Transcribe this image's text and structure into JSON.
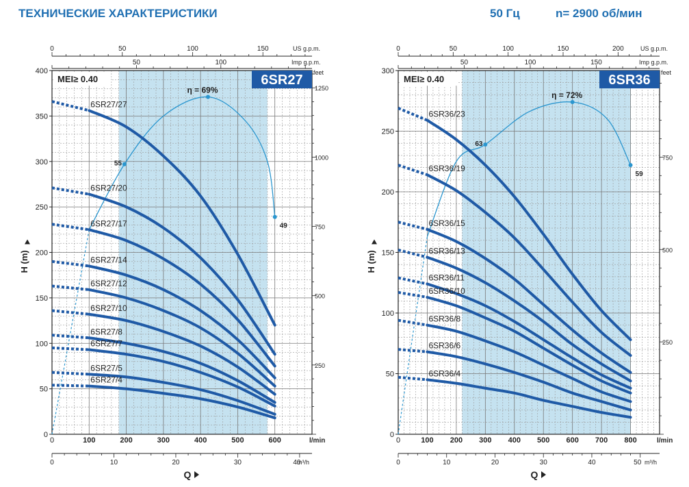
{
  "header": {
    "title": "ТЕХНИЧЕСКИЕ ХАРАКТЕРИСТИКИ",
    "frequency": "50 Гц",
    "speed": "n= 2900 об/мин"
  },
  "colors": {
    "curve": "#1f5aa6",
    "efficiency": "#2a96cf",
    "region": "#c5e2f0",
    "grid": "#9a9a9a",
    "title_text": "#1f6fb2",
    "badge": "#1f5aa6"
  },
  "chart_data": [
    {
      "type": "line",
      "model": "6SR27",
      "mei": "MEI≥ 0.40",
      "xlabel": "Q",
      "ylabel": "H (m)",
      "x_unit": "l/min",
      "x_ticks": [
        0,
        100,
        200,
        300,
        400,
        500,
        600
      ],
      "xlim": [
        0,
        700
      ],
      "y_ticks": [
        0,
        50,
        100,
        150,
        200,
        250,
        300,
        350,
        400
      ],
      "ylim": [
        0,
        400
      ],
      "top_axis_1": {
        "unit": "US g.p.m.",
        "ticks": [
          0,
          50,
          100,
          150
        ]
      },
      "top_axis_2": {
        "unit": "Imp g.p.m.",
        "ticks": [
          50,
          100
        ]
      },
      "bottom_axis_2": {
        "unit": "m³/h",
        "ticks": [
          0,
          10,
          20,
          30,
          40
        ],
        "max_tick_label": "40"
      },
      "right_axis": {
        "unit": "feet",
        "ticks": [
          250,
          500,
          750,
          1000,
          1250
        ]
      },
      "recommended_range": [
        180,
        580
      ],
      "series": [
        {
          "name": "6SR27/27",
          "dash": [
            [
              0,
              366
            ],
            [
              100,
              356
            ]
          ],
          "points": [
            [
              100,
              356
            ],
            [
              200,
              338
            ],
            [
              300,
              306
            ],
            [
              400,
              262
            ],
            [
              500,
              198
            ],
            [
              600,
              120
            ]
          ]
        },
        {
          "name": "6SR27/20",
          "dash": [
            [
              0,
              271
            ],
            [
              100,
              264
            ]
          ],
          "points": [
            [
              100,
              264
            ],
            [
              200,
              250
            ],
            [
              300,
              227
            ],
            [
              400,
              194
            ],
            [
              500,
              148
            ],
            [
              600,
              88
            ]
          ]
        },
        {
          "name": "6SR27/17",
          "dash": [
            [
              0,
              231
            ],
            [
              100,
              225
            ]
          ],
          "points": [
            [
              100,
              225
            ],
            [
              200,
              213
            ],
            [
              300,
              193
            ],
            [
              400,
              165
            ],
            [
              500,
              126
            ],
            [
              600,
              75
            ]
          ]
        },
        {
          "name": "6SR27/14",
          "dash": [
            [
              0,
              190
            ],
            [
              100,
              185
            ]
          ],
          "points": [
            [
              100,
              185
            ],
            [
              200,
              175
            ],
            [
              300,
              159
            ],
            [
              400,
              136
            ],
            [
              500,
              104
            ],
            [
              600,
              62
            ]
          ]
        },
        {
          "name": "6SR27/12",
          "dash": [
            [
              0,
              163
            ],
            [
              100,
              159
            ]
          ],
          "points": [
            [
              100,
              159
            ],
            [
              200,
              150
            ],
            [
              300,
              136
            ],
            [
              400,
              117
            ],
            [
              500,
              89
            ],
            [
              600,
              53
            ]
          ]
        },
        {
          "name": "6SR27/10",
          "dash": [
            [
              0,
              136
            ],
            [
              100,
              132
            ]
          ],
          "points": [
            [
              100,
              132
            ],
            [
              200,
              125
            ],
            [
              300,
              113
            ],
            [
              400,
              97
            ],
            [
              500,
              74
            ],
            [
              600,
              44
            ]
          ]
        },
        {
          "name": "6SR27/8",
          "dash": [
            [
              0,
              109
            ],
            [
              100,
              106
            ]
          ],
          "points": [
            [
              100,
              106
            ],
            [
              200,
              100
            ],
            [
              300,
              91
            ],
            [
              400,
              78
            ],
            [
              500,
              59
            ],
            [
              600,
              35
            ]
          ]
        },
        {
          "name": "6SR27/7",
          "dash": [
            [
              0,
              95
            ],
            [
              100,
              93
            ]
          ],
          "points": [
            [
              100,
              93
            ],
            [
              200,
              88
            ],
            [
              300,
              80
            ],
            [
              400,
              68
            ],
            [
              500,
              52
            ],
            [
              600,
              31
            ]
          ]
        },
        {
          "name": "6SR27/5",
          "dash": [
            [
              0,
              68
            ],
            [
              100,
              66
            ]
          ],
          "points": [
            [
              100,
              66
            ],
            [
              200,
              63
            ],
            [
              300,
              57
            ],
            [
              400,
              49
            ],
            [
              500,
              37
            ],
            [
              600,
              22
            ]
          ]
        },
        {
          "name": "6SR27/4",
          "dash": [
            [
              0,
              54
            ],
            [
              100,
              53
            ]
          ],
          "points": [
            [
              100,
              53
            ],
            [
              200,
              50
            ],
            [
              300,
              45
            ],
            [
              400,
              39
            ],
            [
              500,
              30
            ],
            [
              600,
              18
            ]
          ]
        }
      ],
      "efficiency": {
        "label": "η = 69%",
        "points": [
          [
            0,
            0
          ],
          [
            100,
            225
          ],
          [
            195,
            297
          ],
          [
            300,
            350
          ],
          [
            420,
            371
          ],
          [
            520,
            345
          ],
          [
            580,
            300
          ],
          [
            600,
            239
          ]
        ],
        "dotted_until": 100,
        "markers": [
          {
            "q": 195,
            "h": 297,
            "label": "55"
          },
          {
            "q": 420,
            "h": 371,
            "label": ""
          },
          {
            "q": 600,
            "h": 239,
            "label": "49"
          }
        ]
      }
    },
    {
      "type": "line",
      "model": "6SR36",
      "mei": "MEI≥ 0.40",
      "xlabel": "Q",
      "ylabel": "H (m)",
      "x_unit": "l/min",
      "x_ticks": [
        0,
        100,
        200,
        300,
        400,
        500,
        600,
        700,
        800
      ],
      "xlim": [
        0,
        900
      ],
      "y_ticks": [
        0,
        50,
        100,
        150,
        200,
        250,
        300
      ],
      "ylim": [
        0,
        300
      ],
      "top_axis_1": {
        "unit": "US g.p.m.",
        "ticks": [
          0,
          50,
          100,
          150,
          200
        ]
      },
      "top_axis_2": {
        "unit": "Imp g.p.m.",
        "ticks": [
          50,
          100,
          150
        ]
      },
      "bottom_axis_2": {
        "unit": "m³/h",
        "ticks": [
          0,
          10,
          20,
          30,
          40,
          50
        ],
        "max_tick_label": "50"
      },
      "right_axis": {
        "unit": "feet",
        "ticks": [
          250,
          500,
          750
        ]
      },
      "recommended_range": [
        220,
        800
      ],
      "series": [
        {
          "name": "6SR36/23",
          "dash": [
            [
              0,
              269
            ],
            [
              100,
              259
            ]
          ],
          "points": [
            [
              100,
              259
            ],
            [
              200,
              243
            ],
            [
              300,
              222
            ],
            [
              400,
              196
            ],
            [
              500,
              165
            ],
            [
              600,
              132
            ],
            [
              700,
              102
            ],
            [
              800,
              78
            ]
          ]
        },
        {
          "name": "6SR36/19",
          "dash": [
            [
              0,
              222
            ],
            [
              100,
              214
            ]
          ],
          "points": [
            [
              100,
              214
            ],
            [
              200,
              201
            ],
            [
              300,
              183
            ],
            [
              400,
              162
            ],
            [
              500,
              136
            ],
            [
              600,
              109
            ],
            [
              700,
              84
            ],
            [
              800,
              65
            ]
          ]
        },
        {
          "name": "6SR36/15",
          "dash": [
            [
              0,
              175
            ],
            [
              100,
              169
            ]
          ],
          "points": [
            [
              100,
              169
            ],
            [
              200,
              159
            ],
            [
              300,
              145
            ],
            [
              400,
              128
            ],
            [
              500,
              107
            ],
            [
              600,
              86
            ],
            [
              700,
              67
            ],
            [
              800,
              51
            ]
          ]
        },
        {
          "name": "6SR36/13",
          "dash": [
            [
              0,
              152
            ],
            [
              100,
              146
            ]
          ],
          "points": [
            [
              100,
              146
            ],
            [
              200,
              137
            ],
            [
              300,
              125
            ],
            [
              400,
              110
            ],
            [
              500,
              93
            ],
            [
              600,
              74
            ],
            [
              700,
              58
            ],
            [
              800,
              44
            ]
          ]
        },
        {
          "name": "6SR36/11",
          "dash": [
            [
              0,
              129
            ],
            [
              100,
              124
            ]
          ],
          "points": [
            [
              100,
              124
            ],
            [
              200,
              116
            ],
            [
              300,
              106
            ],
            [
              400,
              93
            ],
            [
              500,
              78
            ],
            [
              600,
              63
            ],
            [
              700,
              49
            ],
            [
              800,
              38
            ]
          ]
        },
        {
          "name": "6SR36/10",
          "dash": [
            [
              0,
              117
            ],
            [
              100,
              113
            ]
          ],
          "points": [
            [
              100,
              113
            ],
            [
              200,
              106
            ],
            [
              300,
              96
            ],
            [
              400,
              85
            ],
            [
              500,
              71
            ],
            [
              600,
              57
            ],
            [
              700,
              44
            ],
            [
              800,
              34
            ]
          ]
        },
        {
          "name": "6SR36/8",
          "dash": [
            [
              0,
              94
            ],
            [
              100,
              90
            ]
          ],
          "points": [
            [
              100,
              90
            ],
            [
              200,
              85
            ],
            [
              300,
              77
            ],
            [
              400,
              68
            ],
            [
              500,
              57
            ],
            [
              600,
              46
            ],
            [
              700,
              35
            ],
            [
              800,
              27
            ]
          ]
        },
        {
          "name": "6SR36/6",
          "dash": [
            [
              0,
              70
            ],
            [
              100,
              68
            ]
          ],
          "points": [
            [
              100,
              68
            ],
            [
              200,
              64
            ],
            [
              300,
              58
            ],
            [
              400,
              51
            ],
            [
              500,
              43
            ],
            [
              600,
              34
            ],
            [
              700,
              27
            ],
            [
              800,
              20
            ]
          ]
        },
        {
          "name": "6SR36/4",
          "dash": [
            [
              0,
              47
            ],
            [
              100,
              45
            ]
          ],
          "points": [
            [
              100,
              45
            ],
            [
              200,
              42
            ],
            [
              300,
              38
            ],
            [
              400,
              34
            ],
            [
              500,
              28
            ],
            [
              600,
              23
            ],
            [
              700,
              18
            ],
            [
              800,
              14
            ]
          ]
        }
      ],
      "efficiency": {
        "label": "η = 72%",
        "points": [
          [
            0,
            0
          ],
          [
            100,
            163
          ],
          [
            200,
            225
          ],
          [
            300,
            239
          ],
          [
            450,
            266
          ],
          [
            600,
            274
          ],
          [
            720,
            260
          ],
          [
            800,
            222
          ]
        ],
        "dotted_until": 100,
        "markers": [
          {
            "q": 300,
            "h": 239,
            "label": "63"
          },
          {
            "q": 600,
            "h": 274,
            "label": ""
          },
          {
            "q": 800,
            "h": 222,
            "label": "59"
          }
        ]
      }
    }
  ]
}
